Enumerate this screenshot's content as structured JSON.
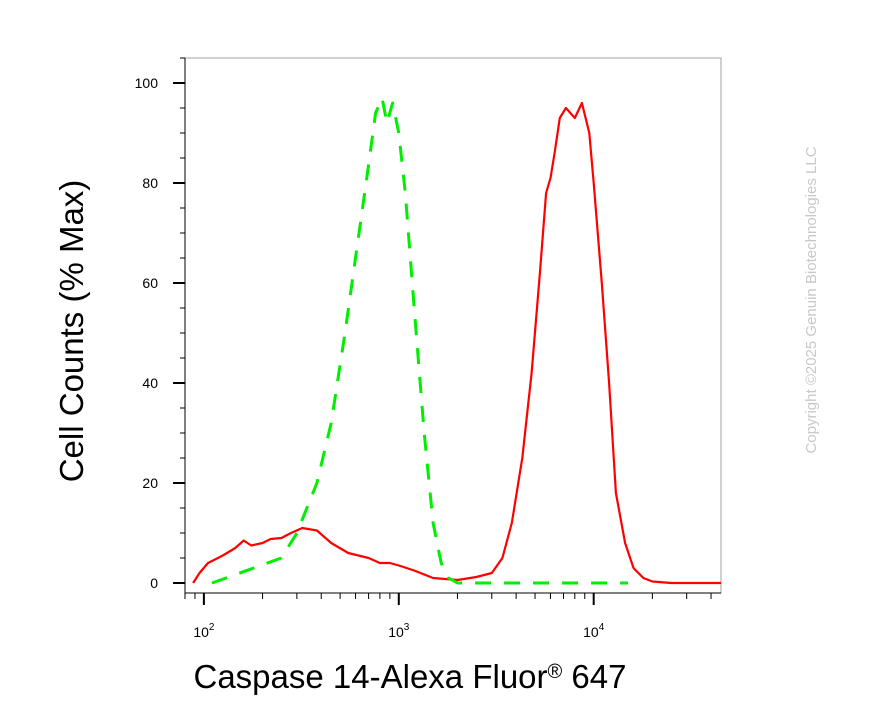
{
  "chart_data": {
    "type": "line",
    "xlabel": "Caspase 14-Alexa Fluor",
    "xlabel_mark": "®",
    "xlabel_suffix": " 647",
    "ylabel": "Cell Counts (% Max)",
    "x_scale": "log",
    "xlim": [
      80,
      45000
    ],
    "ylim": [
      -2,
      105
    ],
    "y_ticks": [
      0,
      20,
      40,
      60,
      80,
      100
    ],
    "x_ticks": [
      {
        "value": 100,
        "base": "10",
        "exp": "2"
      },
      {
        "value": 1000,
        "base": "10",
        "exp": "3"
      },
      {
        "value": 10000,
        "base": "10",
        "exp": "4"
      }
    ],
    "grid": false,
    "series": [
      {
        "color": "#ff0000",
        "style": "solid",
        "points": [
          [
            88,
            0
          ],
          [
            95,
            2
          ],
          [
            105,
            4
          ],
          [
            125,
            5.5
          ],
          [
            145,
            7
          ],
          [
            160,
            8.5
          ],
          [
            175,
            7.5
          ],
          [
            200,
            8
          ],
          [
            220,
            8.8
          ],
          [
            250,
            9
          ],
          [
            280,
            10
          ],
          [
            320,
            11
          ],
          [
            380,
            10.5
          ],
          [
            450,
            8
          ],
          [
            550,
            6
          ],
          [
            700,
            5
          ],
          [
            800,
            4
          ],
          [
            900,
            4
          ],
          [
            1000,
            3.5
          ],
          [
            1200,
            2.5
          ],
          [
            1500,
            1
          ],
          [
            2000,
            0.6
          ],
          [
            2500,
            1.2
          ],
          [
            3000,
            2
          ],
          [
            3400,
            5
          ],
          [
            3800,
            12
          ],
          [
            4300,
            25
          ],
          [
            4800,
            42
          ],
          [
            5300,
            62
          ],
          [
            5700,
            78
          ],
          [
            6000,
            81
          ],
          [
            6300,
            86
          ],
          [
            6700,
            93
          ],
          [
            7200,
            95
          ],
          [
            8000,
            93
          ],
          [
            8700,
            96
          ],
          [
            9500,
            90
          ],
          [
            10000,
            80
          ],
          [
            11000,
            60
          ],
          [
            12000,
            40
          ],
          [
            13000,
            18
          ],
          [
            14500,
            8
          ],
          [
            16000,
            3
          ],
          [
            18000,
            1
          ],
          [
            20000,
            0.3
          ],
          [
            25000,
            0
          ],
          [
            45000,
            0
          ]
        ]
      },
      {
        "color": "#00ee00",
        "style": "dashed",
        "points": [
          [
            110,
            0
          ],
          [
            130,
            1
          ],
          [
            180,
            3
          ],
          [
            250,
            5
          ],
          [
            300,
            10
          ],
          [
            380,
            20
          ],
          [
            450,
            32
          ],
          [
            530,
            50
          ],
          [
            600,
            65
          ],
          [
            680,
            80
          ],
          [
            760,
            94
          ],
          [
            820,
            97
          ],
          [
            870,
            92
          ],
          [
            930,
            96
          ],
          [
            1000,
            90
          ],
          [
            1080,
            78
          ],
          [
            1200,
            55
          ],
          [
            1350,
            30
          ],
          [
            1500,
            12
          ],
          [
            1650,
            4
          ],
          [
            1800,
            1
          ],
          [
            2000,
            0
          ],
          [
            3000,
            0
          ],
          [
            8000,
            0
          ],
          [
            15000,
            0
          ]
        ]
      }
    ]
  },
  "copyright": "Copyright ©2025 Genuin Biotechnologies LLC"
}
